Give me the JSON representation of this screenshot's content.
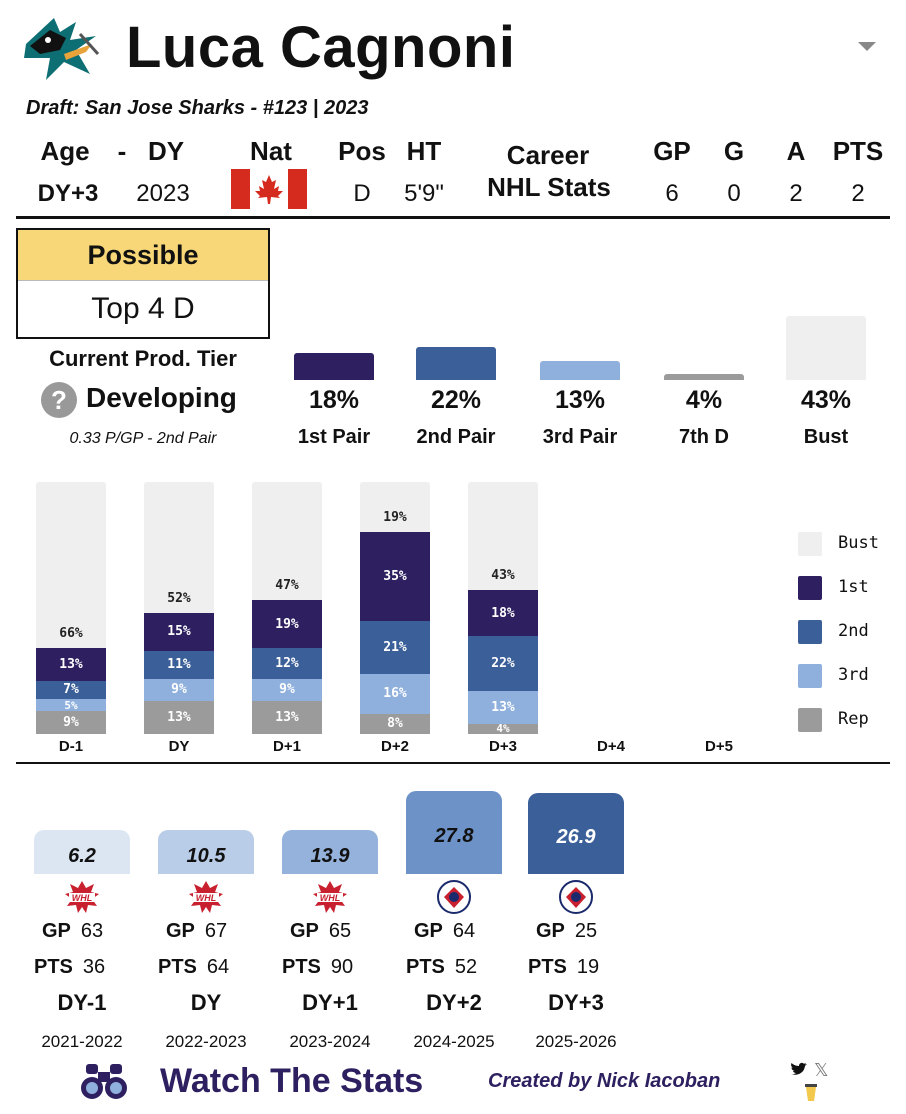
{
  "player": {
    "name": "Luca Cagnoni",
    "draft": "Draft: San Jose Sharks - #123 | 2023"
  },
  "bio": {
    "headers": {
      "age": "Age",
      "dash": "-",
      "dy": "DY",
      "nat": "Nat",
      "pos": "Pos",
      "ht": "HT"
    },
    "age_val": "DY+3",
    "dy_val": "2023",
    "pos_val": "D",
    "ht_val": "5'9\""
  },
  "career": {
    "label_top": "Career",
    "label_bottom": "NHL Stats",
    "headers": [
      "GP",
      "G",
      "A",
      "PTS"
    ],
    "values": [
      "6",
      "0",
      "2",
      "2"
    ]
  },
  "outcome": {
    "header": "Possible",
    "value": "Top 4 D"
  },
  "prod_tier": {
    "title": "Current Prod. Tier",
    "icon": "question-icon",
    "status": "Developing",
    "rate": "0.33 P/GP - 2nd Pair"
  },
  "tiers": [
    {
      "pct_label": "18%",
      "value": 18,
      "label": "1st Pair",
      "color": "#2e2060"
    },
    {
      "pct_label": "22%",
      "value": 22,
      "label": "2nd Pair",
      "color": "#3b5f98"
    },
    {
      "pct_label": "13%",
      "value": 13,
      "label": "3rd Pair",
      "color": "#8fb0dc"
    },
    {
      "pct_label": "4%",
      "value": 4,
      "label": "7th D",
      "color": "#9b9b9b"
    },
    {
      "pct_label": "43%",
      "value": 43,
      "label": "Bust",
      "color": "#efefef"
    }
  ],
  "chart_data": {
    "type": "bar",
    "stacked": true,
    "categories": [
      "D-1",
      "DY",
      "D+1",
      "D+2",
      "D+3",
      "D+4",
      "D+5"
    ],
    "series": [
      {
        "name": "Rep",
        "color": "#9b9b9b",
        "values": [
          9,
          13,
          13,
          8,
          4,
          null,
          null
        ]
      },
      {
        "name": "3rd",
        "color": "#8fb0dc",
        "values": [
          5,
          9,
          9,
          16,
          13,
          null,
          null
        ]
      },
      {
        "name": "2nd",
        "color": "#3b5f98",
        "values": [
          7,
          11,
          12,
          21,
          22,
          null,
          null
        ]
      },
      {
        "name": "1st",
        "color": "#2e2060",
        "values": [
          13,
          15,
          19,
          35,
          18,
          null,
          null
        ]
      },
      {
        "name": "Bust",
        "color": "#efefef",
        "values": [
          66,
          52,
          47,
          19,
          43,
          null,
          null
        ]
      }
    ],
    "legend": [
      "Bust",
      "1st",
      "2nd",
      "3rd",
      "Rep"
    ],
    "legend_position": "right",
    "ylim": [
      0,
      100
    ]
  },
  "seasons": [
    {
      "ppg": "6.2",
      "ppg_value": 6.2,
      "league_icon": "whl-logo-icon",
      "league": "WHL",
      "gp_label": "GP",
      "gp": "63",
      "pts_label": "PTS",
      "pts": "36",
      "dy": "DY-1",
      "year": "2021-2022",
      "color": "#dce6f3",
      "text_color": "#111"
    },
    {
      "ppg": "10.5",
      "ppg_value": 10.5,
      "league_icon": "whl-logo-icon",
      "league": "WHL",
      "gp_label": "GP",
      "gp": "67",
      "pts_label": "PTS",
      "pts": "64",
      "dy": "DY",
      "year": "2022-2023",
      "color": "#bacde8",
      "text_color": "#111"
    },
    {
      "ppg": "13.9",
      "ppg_value": 13.9,
      "league_icon": "whl-logo-icon",
      "league": "WHL",
      "gp_label": "GP",
      "gp": "65",
      "pts_label": "PTS",
      "pts": "90",
      "dy": "DY+1",
      "year": "2023-2024",
      "color": "#95b2dc",
      "text_color": "#111"
    },
    {
      "ppg": "27.8",
      "ppg_value": 27.8,
      "league_icon": "ahl-logo-icon",
      "league": "AHL",
      "gp_label": "GP",
      "gp": "64",
      "pts_label": "PTS",
      "pts": "52",
      "dy": "DY+2",
      "year": "2024-2025",
      "color": "#6c92c8",
      "text_color": "#111"
    },
    {
      "ppg": "26.9",
      "ppg_value": 26.9,
      "league_icon": "ahl-logo-icon",
      "league": "AHL",
      "gp_label": "GP",
      "gp": "25",
      "pts_label": "PTS",
      "pts": "19",
      "dy": "DY+3",
      "year": "2025-2026",
      "color": "#3b5f98",
      "text_color": "#fff"
    }
  ],
  "footer": {
    "brand": "Watch The Stats",
    "credit": "Created by Nick Iacoban",
    "colors": {
      "brand": "#2e2060"
    }
  }
}
